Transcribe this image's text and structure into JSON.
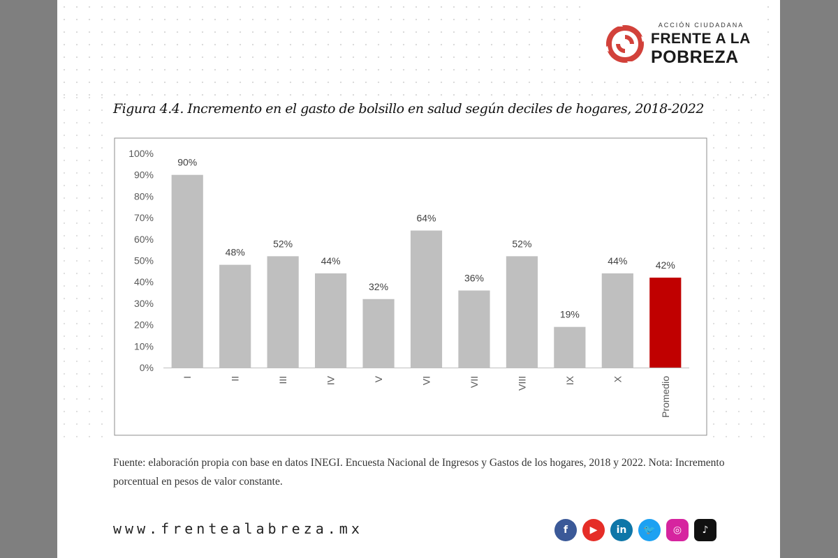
{
  "logo": {
    "tagline": "ACCIÓN CIUDADANA",
    "line1": "FRENTE A LA",
    "line2": "POBREZA"
  },
  "figure_title": "Figura 4.4. Incremento en el gasto de bolsillo en salud según deciles de hogares, 2018-2022",
  "chart_data": {
    "type": "bar",
    "categories": [
      "I",
      "II",
      "III",
      "IV",
      "V",
      "VI",
      "VII",
      "VIII",
      "IX",
      "X",
      "Promedio"
    ],
    "values": [
      90,
      48,
      52,
      44,
      32,
      64,
      36,
      52,
      19,
      44,
      42
    ],
    "data_labels": [
      "90%",
      "48%",
      "52%",
      "44%",
      "32%",
      "64%",
      "36%",
      "52%",
      "19%",
      "44%",
      "42%"
    ],
    "ylim": [
      0,
      100
    ],
    "yticks": [
      "0%",
      "10%",
      "20%",
      "30%",
      "40%",
      "50%",
      "60%",
      "70%",
      "80%",
      "90%",
      "100%"
    ],
    "colors": {
      "default": "#bfbfbf",
      "highlight": "#c00000",
      "highlight_category": "Promedio"
    },
    "grid": false,
    "legend": "none"
  },
  "source_note": "Fuente: elaboración propia con base en datos INEGI. Encuesta Nacional de Ingresos y Gastos de los hogares, 2018 y 2022. Nota: Incremento porcentual en pesos de valor constante.",
  "website": "www.frentealabreza.mx",
  "social": [
    {
      "icon": "facebook-icon",
      "glyph": "f",
      "color": "#3b5998"
    },
    {
      "icon": "youtube-icon",
      "glyph": "▶",
      "color": "#e52d27"
    },
    {
      "icon": "linkedin-icon",
      "glyph": "in",
      "color": "#0e76a8"
    },
    {
      "icon": "twitter-icon",
      "glyph": "🐦",
      "color": "#1da1f2"
    },
    {
      "icon": "instagram-icon",
      "glyph": "◎",
      "color": "#d6249f"
    },
    {
      "icon": "tiktok-icon",
      "glyph": "♪",
      "color": "#111111"
    }
  ]
}
